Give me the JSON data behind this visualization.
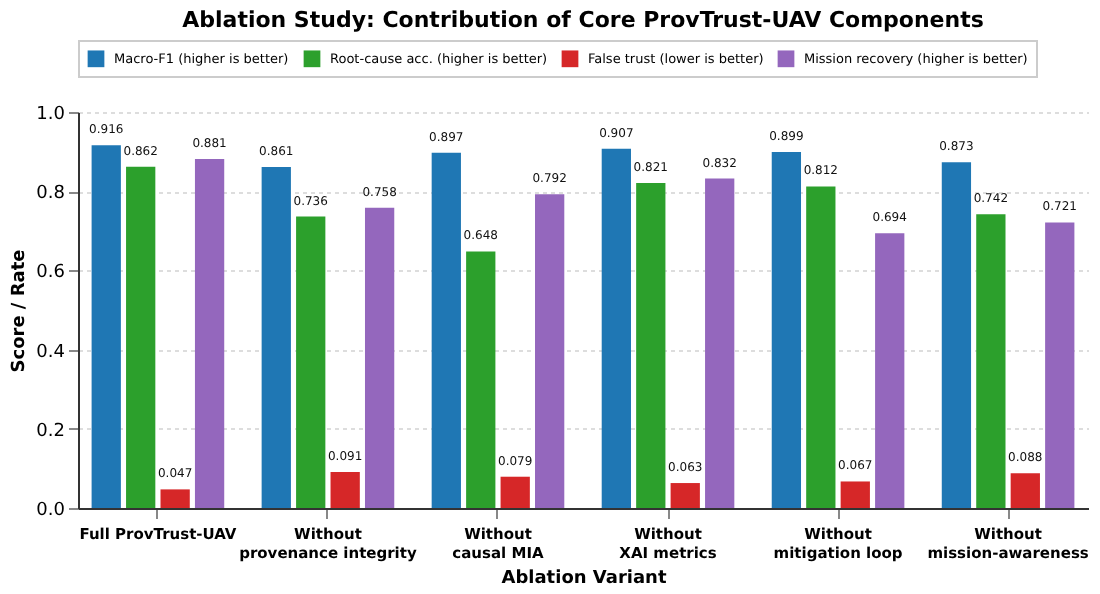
{
  "chart_data": {
    "type": "bar",
    "title": "Ablation Study: Contribution of Core ProvTrust-UAV Components",
    "xlabel": "Ablation Variant",
    "ylabel": "Score / Rate",
    "categories": [
      "Full ProvTrust-UAV",
      "Without\nprovenance integrity",
      "Without\ncausal MIA",
      "Without\nXAI metrics",
      "Without\nmitigation loop",
      "Without\nmission-awareness"
    ],
    "series": [
      {
        "name": "Macro-F1 (higher is better)",
        "color": "#1f77b4",
        "values": [
          0.916,
          0.861,
          0.897,
          0.907,
          0.899,
          0.873
        ]
      },
      {
        "name": "Root-cause acc. (higher is better)",
        "color": "#2ca02c",
        "values": [
          0.862,
          0.736,
          0.648,
          0.821,
          0.812,
          0.742
        ]
      },
      {
        "name": "False trust (lower is better)",
        "color": "#d62728",
        "values": [
          0.047,
          0.091,
          0.079,
          0.063,
          0.067,
          0.088
        ]
      },
      {
        "name": "Mission recovery (higher is better)",
        "color": "#9467bd",
        "values": [
          0.881,
          0.758,
          0.792,
          0.832,
          0.694,
          0.721
        ]
      }
    ],
    "ylim": [
      0,
      1.0
    ],
    "yticks": [
      {
        "value": 0,
        "label": "0.0"
      },
      0.2,
      0.4,
      0.6,
      0.8,
      {
        "value": 1,
        "label": "1.0"
      }
    ],
    "grid": "y",
    "legend": "top",
    "data_labels": true
  }
}
